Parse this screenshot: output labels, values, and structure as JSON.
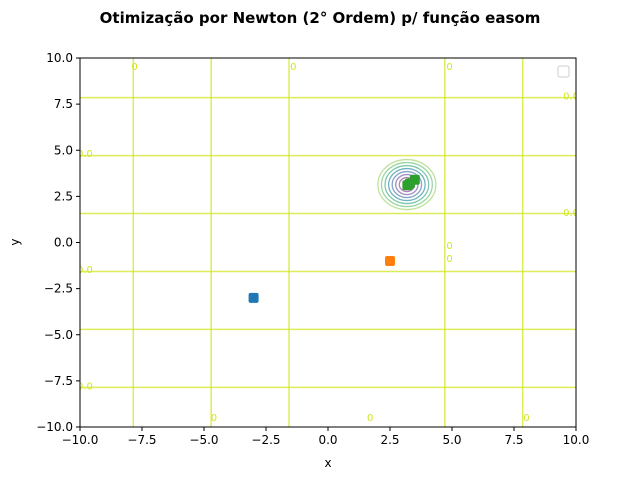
{
  "chart_data": {
    "type": "scatter",
    "title": "Otimização por Newton (2° Ordem) p/ função easom",
    "xlabel": "x",
    "ylabel": "y",
    "xlim": [
      -10,
      10
    ],
    "ylim": [
      -10,
      10
    ],
    "xticks": [
      -10,
      -7.5,
      -5,
      -2.5,
      0,
      2.5,
      5,
      7.5,
      10
    ],
    "yticks": [
      -10,
      -7.5,
      -5,
      -2.5,
      0,
      2.5,
      5,
      7.5,
      10
    ],
    "xtick_labels": [
      "−10.0",
      "−7.5",
      "−5.0",
      "−2.5",
      "0.0",
      "2.5",
      "5.0",
      "7.5",
      "10.0"
    ],
    "ytick_labels": [
      "−10.0",
      "−7.5",
      "−5.0",
      "−2.5",
      "0.0",
      "2.5",
      "5.0",
      "7.5",
      "10.0"
    ],
    "grid": false,
    "legend_position": "top-right",
    "background": {
      "type": "contour",
      "colormap": "viridis",
      "vertical_line_x": [
        -7.85,
        -4.71,
        -1.57,
        4.71,
        7.85
      ],
      "horizontal_line_y": [
        7.85,
        4.71,
        1.57,
        -1.57,
        -4.71,
        -7.85
      ],
      "line_color": "#d2e61f",
      "center_contours": {
        "x": 3.14,
        "y": 3.14,
        "colors": [
          "#bde39a",
          "#9bd6a2",
          "#7ec7ad",
          "#6db3c0",
          "#86a3c7",
          "#9f8fc2",
          "#b180bd"
        ]
      },
      "contour_labels": [
        {
          "text": "0",
          "x": -7.8,
          "y": 9.5
        },
        {
          "text": "0",
          "x": -1.4,
          "y": 9.5
        },
        {
          "text": "0",
          "x": 4.9,
          "y": 9.5
        },
        {
          "text": "0.0",
          "x": 9.8,
          "y": 7.9
        },
        {
          "text": "0.0",
          "x": -9.8,
          "y": 4.8
        },
        {
          "text": "0.0",
          "x": 9.8,
          "y": 1.6
        },
        {
          "text": "0",
          "x": 4.9,
          "y": -0.2
        },
        {
          "text": "0",
          "x": 4.9,
          "y": -0.9
        },
        {
          "text": "0.0",
          "x": -9.8,
          "y": -1.5
        },
        {
          "text": "0.0",
          "x": -9.8,
          "y": -7.8
        },
        {
          "text": "0",
          "x": -4.6,
          "y": -9.5
        },
        {
          "text": "0",
          "x": 1.7,
          "y": -9.5
        },
        {
          "text": "0",
          "x": 8.0,
          "y": -9.5
        }
      ]
    },
    "series": [
      {
        "color": "#1f77b4",
        "points": [
          [
            -3.0,
            -3.0
          ]
        ]
      },
      {
        "color": "#ff7f0e",
        "points": [
          [
            2.5,
            -1.0
          ]
        ]
      },
      {
        "color": "#2ca02c",
        "points": [
          [
            3.5,
            3.4
          ],
          [
            3.3,
            3.2
          ],
          [
            3.2,
            3.1
          ]
        ]
      }
    ]
  }
}
